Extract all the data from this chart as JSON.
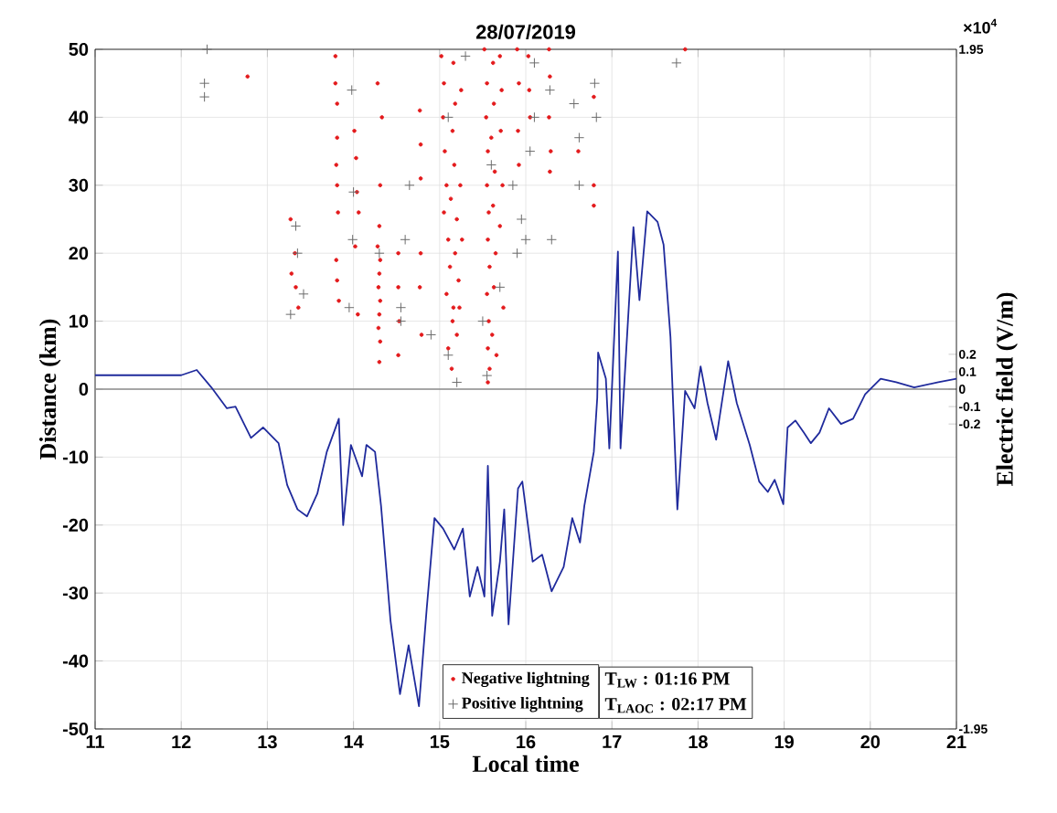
{
  "chart_data": {
    "type": "scatter",
    "title": "28/07/2019",
    "xlabel": "Local time",
    "ylabel": "Distance (km)",
    "y2label": "Electric field (V/m)",
    "xlim": [
      11,
      21
    ],
    "xticks": [
      11,
      12,
      13,
      14,
      15,
      16,
      17,
      18,
      19,
      20,
      21
    ],
    "ylim": [
      -50,
      50
    ],
    "yticks": [
      -50,
      -40,
      -30,
      -20,
      -10,
      0,
      10,
      20,
      30,
      40,
      50
    ],
    "y2lim": [
      -1.95,
      1.95
    ],
    "y2ticks": [
      -1.95,
      -0.2,
      -0.1,
      0,
      0.1,
      0.2,
      1.95
    ],
    "grid": true,
    "legend": "bottom right",
    "ref_lines": [
      {
        "axis": "y",
        "value": 0,
        "color": "#8c8c8c"
      }
    ],
    "annotations": [
      "×10$^{4}$",
      "T$_{LW}$ :  01:16 PM",
      "T$_{LAOC}$ : 02:17 PM"
    ],
    "series": [
      {
        "name": "Negative lightning",
        "marker": "circle",
        "color": "#e31a1c",
        "x": [
          12.77,
          13.27,
          13.32,
          13.28,
          13.33,
          13.36,
          13.79,
          13.79,
          13.81,
          13.81,
          13.8,
          13.81,
          13.82,
          13.8,
          13.81,
          13.83,
          14.01,
          14.03,
          14.04,
          14.06,
          14.02,
          14.05,
          14.28,
          14.33,
          14.31,
          14.3,
          14.28,
          14.31,
          14.3,
          14.29,
          14.31,
          14.3,
          14.29,
          14.31,
          14.3,
          14.52,
          14.52,
          14.53,
          14.52,
          14.77,
          14.78,
          14.78,
          14.78,
          14.77,
          14.79,
          15.02,
          15.05,
          15.04,
          15.06,
          15.08,
          15.05,
          15.1,
          15.12,
          15.08,
          15.15,
          15.1,
          15.14,
          15.16,
          15.18,
          15.15,
          15.17,
          15.13,
          15.2,
          15.18,
          15.22,
          15.16,
          15.2,
          15.25,
          15.24,
          15.26,
          15.23,
          15.52,
          15.55,
          15.54,
          15.56,
          15.55,
          15.57,
          15.56,
          15.58,
          15.55,
          15.57,
          15.56,
          15.58,
          15.56,
          15.62,
          15.63,
          15.6,
          15.64,
          15.62,
          15.65,
          15.63,
          15.61,
          15.66,
          15.7,
          15.72,
          15.71,
          15.73,
          15.7,
          15.74,
          15.9,
          15.92,
          15.91,
          15.92,
          16.03,
          16.04,
          16.05,
          16.27,
          16.28,
          16.27,
          16.29,
          16.28,
          16.61,
          16.79,
          16.79,
          16.79,
          17.85
        ],
        "values": [
          46,
          25,
          20,
          17,
          15,
          12,
          49,
          45,
          42,
          37,
          33,
          30,
          26,
          19,
          16,
          13,
          38,
          34,
          29,
          26,
          21,
          11,
          45,
          40,
          30,
          24,
          21,
          19,
          17,
          15,
          13,
          11,
          9,
          7,
          4,
          20,
          15,
          10,
          5,
          41,
          36,
          31,
          20,
          15,
          8,
          49,
          45,
          40,
          35,
          30,
          26,
          22,
          18,
          14,
          10,
          6,
          3,
          48,
          42,
          38,
          33,
          28,
          25,
          20,
          16,
          12,
          8,
          44,
          30,
          22,
          12,
          50,
          45,
          40,
          35,
          30,
          26,
          22,
          18,
          14,
          10,
          6,
          3,
          1,
          48,
          42,
          37,
          32,
          27,
          20,
          15,
          8,
          5,
          49,
          44,
          38,
          30,
          24,
          12,
          50,
          45,
          38,
          33,
          49,
          44,
          40,
          50,
          46,
          40,
          35,
          32,
          35,
          43,
          30,
          27,
          50
        ]
      },
      {
        "name": "Positive lightning",
        "marker": "cross",
        "color": "#6b6b6b",
        "x": [
          12.3,
          12.27,
          12.27,
          13.27,
          13.33,
          13.35,
          13.42,
          13.98,
          14.0,
          13.99,
          13.95,
          14.3,
          14.55,
          14.55,
          14.6,
          14.65,
          14.9,
          15.1,
          15.2,
          15.3,
          15.1,
          15.5,
          15.55,
          15.6,
          15.7,
          15.85,
          15.9,
          16.0,
          15.95,
          16.05,
          16.1,
          16.1,
          16.3,
          16.28,
          16.56,
          16.62,
          16.62,
          16.8,
          16.82,
          17.75
        ],
        "values": [
          50,
          45,
          43,
          11,
          24,
          20,
          14,
          44,
          29,
          22,
          12,
          20,
          10,
          12,
          22,
          30,
          8,
          5,
          1,
          49,
          40,
          10,
          2,
          33,
          15,
          30,
          20,
          22,
          25,
          35,
          40,
          48,
          22,
          44,
          42,
          37,
          30,
          45,
          40,
          48
        ]
      },
      {
        "type": "line",
        "axis": "y2",
        "color": "#1f2a9c",
        "x": [
          11,
          11.58,
          12,
          12.18,
          12.35,
          12.53,
          12.63,
          12.81,
          12.95,
          13.13,
          13.23,
          13.35,
          13.46,
          13.58,
          13.69,
          13.83,
          13.88,
          13.97,
          14.1,
          14.15,
          14.25,
          14.32,
          14.43,
          14.54,
          14.64,
          14.76,
          14.85,
          14.94,
          15.04,
          15.17,
          15.27,
          15.35,
          15.44,
          15.52,
          15.56,
          15.61,
          15.7,
          15.75,
          15.8,
          15.91,
          15.96,
          16.08,
          16.19,
          16.3,
          16.44,
          16.54,
          16.63,
          16.68,
          16.79,
          16.83,
          16.84,
          16.93,
          16.97,
          17.07,
          17.1,
          17.25,
          17.32,
          17.41,
          17.53,
          17.6,
          17.68,
          17.76,
          17.85,
          17.96,
          18.03,
          18.11,
          18.21,
          18.35,
          18.45,
          18.6,
          18.71,
          18.81,
          18.89,
          18.99,
          19.04,
          19.13,
          19.23,
          19.31,
          19.41,
          19.52,
          19.66,
          19.8,
          19.94,
          20.12,
          20.3,
          20.51,
          20.79,
          21.0
        ],
        "values": [
          0.08,
          0.08,
          0.08,
          0.11,
          0.01,
          -0.11,
          -0.1,
          -0.28,
          -0.22,
          -0.31,
          -0.55,
          -0.69,
          -0.73,
          -0.6,
          -0.36,
          -0.17,
          -0.78,
          -0.32,
          -0.5,
          -0.32,
          -0.36,
          -0.67,
          -1.33,
          -1.75,
          -1.47,
          -1.82,
          -1.26,
          -0.74,
          -0.8,
          -0.92,
          -0.8,
          -1.19,
          -1.02,
          -1.19,
          -0.44,
          -1.3,
          -0.99,
          -0.69,
          -1.35,
          -0.57,
          -0.53,
          -0.99,
          -0.95,
          -1.16,
          -1.02,
          -0.74,
          -0.88,
          -0.67,
          -0.36,
          -0.05,
          0.21,
          0.06,
          -0.34,
          0.79,
          -0.34,
          0.93,
          0.51,
          1.02,
          0.96,
          0.83,
          0.3,
          -0.69,
          -0.01,
          -0.11,
          0.13,
          -0.08,
          -0.29,
          0.16,
          -0.08,
          -0.32,
          -0.53,
          -0.59,
          -0.52,
          -0.66,
          -0.22,
          -0.18,
          -0.25,
          -0.31,
          -0.25,
          -0.11,
          -0.2,
          -0.17,
          -0.03,
          0.06,
          0.04,
          0.01,
          0.04,
          0.06
        ]
      }
    ]
  }
}
